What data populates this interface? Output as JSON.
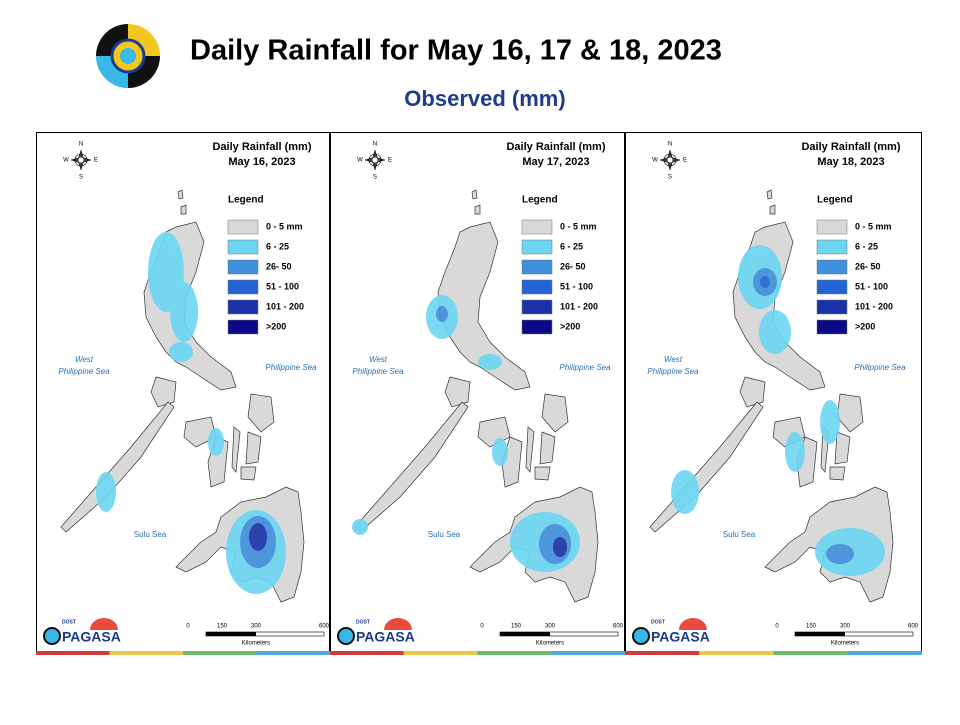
{
  "header": {
    "title": "Daily Rainfall for May 16, 17 & 18, 2023",
    "subtitle": "Observed (mm)"
  },
  "panels": [
    {
      "title": "Daily Rainfall (mm)",
      "date": "May 16, 2023"
    },
    {
      "title": "Daily Rainfall (mm)",
      "date": "May 17, 2023"
    },
    {
      "title": "Daily Rainfall (mm)",
      "date": "May 18, 2023"
    }
  ],
  "legend": {
    "title": "Legend",
    "items": [
      {
        "label": "0 - 5 mm",
        "color": "#d9d9d9"
      },
      {
        "label": "6 - 25",
        "color": "#6cd6f2"
      },
      {
        "label": "26- 50",
        "color": "#3f8fdc"
      },
      {
        "label": "51 - 100",
        "color": "#2463d6"
      },
      {
        "label": "101 - 200",
        "color": "#1b31a8"
      },
      {
        "label": ">200",
        "color": "#0a0a86"
      }
    ]
  },
  "seas": {
    "west": [
      "West",
      "Philippine Sea"
    ],
    "east": "Philippine Sea",
    "south": "Sulu Sea"
  },
  "compass": {
    "n": "N",
    "e": "E",
    "s": "S",
    "w": "W"
  },
  "scale": {
    "ticks": [
      "0",
      "150",
      "300",
      "600"
    ],
    "unit": "Kilometers"
  },
  "logo": {
    "top": "DOST",
    "name": "PAGASA"
  }
}
